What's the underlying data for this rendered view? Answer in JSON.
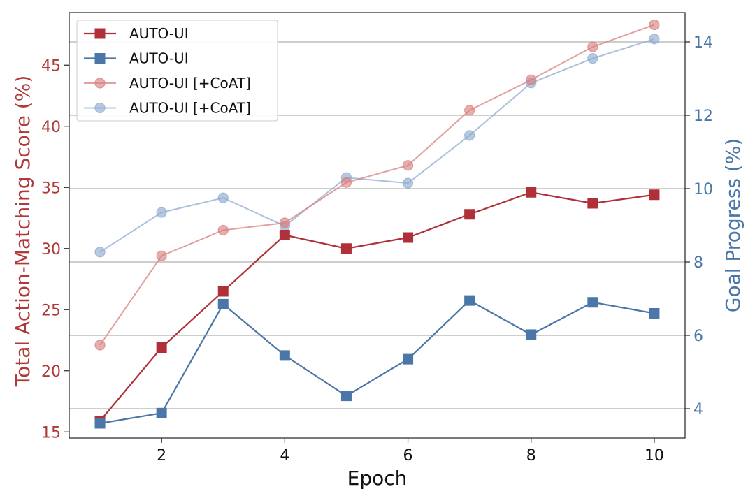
{
  "chart_data": {
    "type": "line",
    "xlabel": "Epoch",
    "ylabel_left": "Total Action-Matching Score (%)",
    "ylabel_right": "Goal Progress (%)",
    "x_ticks": [
      2,
      4,
      6,
      8,
      10
    ],
    "y_left_ticks": [
      15,
      20,
      25,
      30,
      35,
      40,
      45
    ],
    "y_right_ticks": [
      4,
      6,
      8,
      10,
      12,
      14
    ],
    "xlim": [
      0.5,
      10.5
    ],
    "ylim_left": [
      14.5,
      49.3
    ],
    "ylim_right": [
      3.2,
      14.8
    ],
    "grid": "horizontal (right axis)",
    "legend_position": "upper-left",
    "colors": {
      "left_axis": "#b03a3a",
      "right_axis": "#4a76a8",
      "red_dark": "#b0303a",
      "blue_dark": "#4a76a8",
      "red_light": "#d98080",
      "blue_light": "#8fabd0"
    },
    "series": [
      {
        "name": "AUTO-UI",
        "axis": "left",
        "marker": "square",
        "style": "dark-red",
        "x": [
          1,
          2,
          3,
          4,
          5,
          6,
          7,
          8,
          9,
          10
        ],
        "values": [
          15.9,
          21.9,
          26.5,
          31.1,
          30.0,
          30.9,
          32.8,
          34.6,
          33.7,
          34.4
        ]
      },
      {
        "name": "AUTO-UI",
        "axis": "right",
        "marker": "square",
        "style": "dark-blue",
        "x": [
          1,
          2,
          3,
          4,
          5,
          6,
          7,
          8,
          9,
          10
        ],
        "values": [
          3.6,
          3.88,
          6.85,
          5.45,
          4.35,
          5.35,
          6.95,
          6.02,
          6.9,
          6.6
        ]
      },
      {
        "name": "AUTO-UI [+CoAT]",
        "axis": "left",
        "marker": "circle",
        "style": "light-red",
        "x": [
          1,
          2,
          3,
          4,
          5,
          6,
          7,
          8,
          9,
          10
        ],
        "values": [
          22.1,
          29.4,
          31.5,
          32.1,
          35.4,
          36.8,
          41.3,
          43.8,
          46.5,
          48.3
        ]
      },
      {
        "name": "AUTO-UI [+CoAT]",
        "axis": "right",
        "marker": "circle",
        "style": "light-blue",
        "x": [
          1,
          2,
          3,
          4,
          5,
          6,
          7,
          8,
          9,
          10
        ],
        "values": [
          8.27,
          9.35,
          9.75,
          8.98,
          10.3,
          10.15,
          11.45,
          12.88,
          13.55,
          14.08
        ]
      }
    ]
  }
}
